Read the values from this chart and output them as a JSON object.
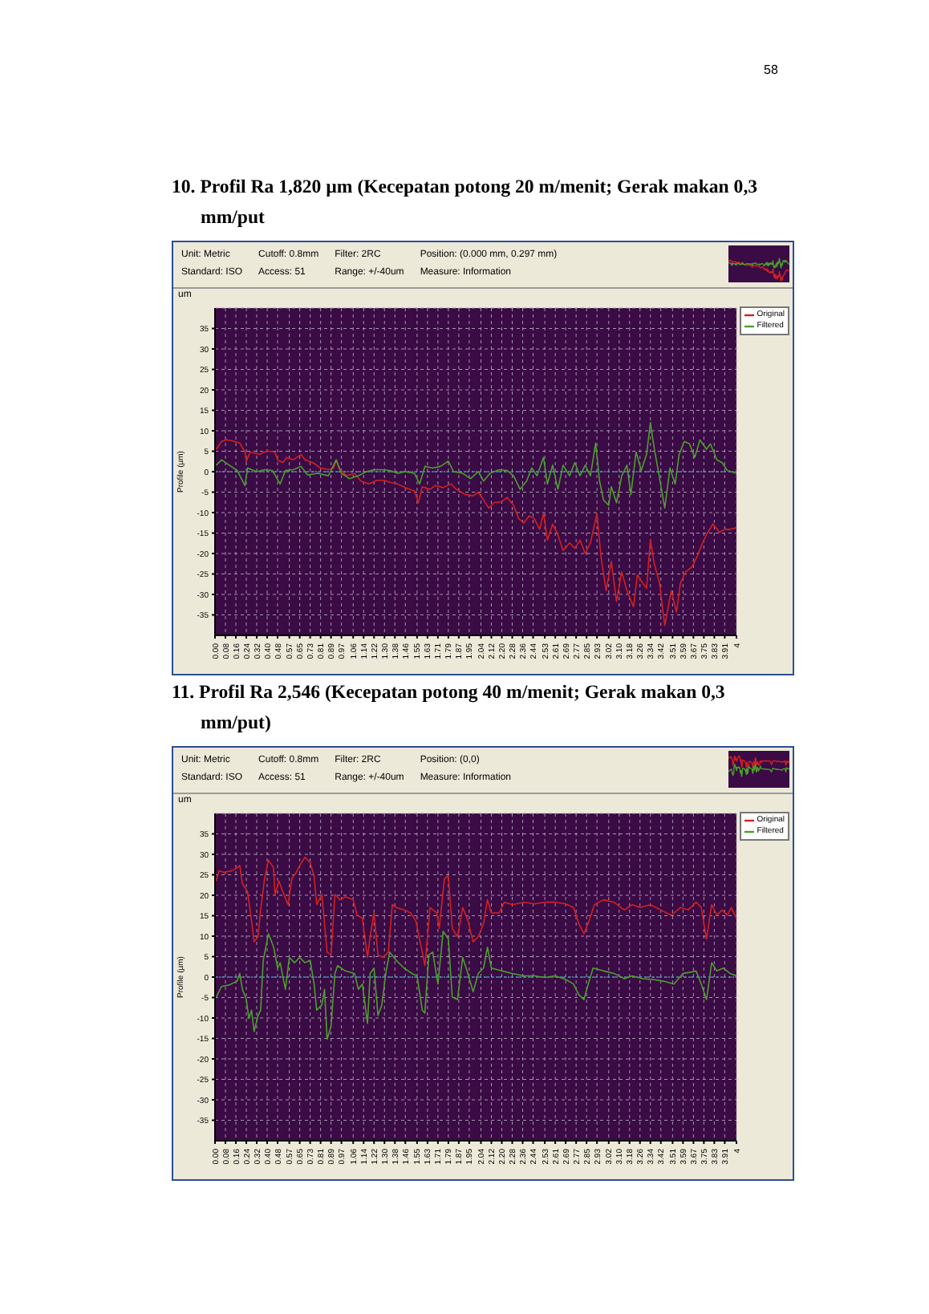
{
  "chart_data": [
    {
      "type": "line",
      "title": "10. Profil Ra 1,820 µm (Kecepatan potong 20 m/menit; Gerak makan 0,3 mm/put",
      "ylabel": "Profile (µm)",
      "annotations": [
        "Unit: Metric",
        "Cutoff: 0.8mm",
        "Filter: 2RC",
        "Position: (0.000 mm, 0.297 mm)",
        "Standard: ISO",
        "Access: 51",
        "Range: +/-40um",
        "Measure: Information",
        "um",
        "58"
      ],
      "series": [
        {
          "name": "Original",
          "color": "#d42020",
          "x": [
            0.01,
            0.05,
            0.09,
            0.15,
            0.19,
            0.23,
            0.24,
            0.27,
            0.34,
            0.4,
            0.46,
            0.48,
            0.52,
            0.55,
            0.6,
            0.66,
            0.69,
            0.75,
            0.81,
            0.87,
            0.91,
            0.93,
            0.95,
            1.01,
            1.07,
            1.12,
            1.18,
            1.24,
            1.3,
            1.34,
            1.4,
            1.46,
            1.53,
            1.56,
            1.59,
            1.65,
            1.69,
            1.75,
            1.81,
            1.85,
            1.92,
            1.98,
            2.02,
            2.06,
            2.1,
            2.14,
            2.2,
            2.24,
            2.29,
            2.33,
            2.37,
            2.41,
            2.45,
            2.49,
            2.52,
            2.55,
            2.59,
            2.63,
            2.67,
            2.72,
            2.76,
            2.8,
            2.84,
            2.88,
            2.93,
            2.96,
            3.0,
            3.04,
            3.08,
            3.12,
            3.16,
            3.21,
            3.24,
            3.28,
            3.31,
            3.34,
            3.37,
            3.41,
            3.45,
            3.5,
            3.54,
            3.57,
            3.61,
            3.66,
            3.7,
            3.74,
            3.78,
            3.82,
            3.87,
            3.91,
            3.95,
            4.0
          ],
          "values": [
            5.5,
            7.4,
            7.8,
            7.4,
            7.0,
            4.8,
            2.5,
            4.8,
            4.2,
            5.1,
            4.8,
            2.9,
            2.2,
            3.5,
            2.9,
            4.2,
            2.9,
            2.2,
            0.9,
            0.5,
            0.9,
            2.9,
            0.9,
            -1.0,
            -0.4,
            -2.3,
            -3.0,
            -2.1,
            -2.1,
            -2.6,
            -3.0,
            -3.9,
            -4.7,
            -7.6,
            -3.7,
            -4.3,
            -3.4,
            -3.9,
            -3.0,
            -4.3,
            -5.6,
            -5.9,
            -5.0,
            -6.9,
            -8.9,
            -7.6,
            -7.3,
            -6.3,
            -8.2,
            -11.5,
            -12.5,
            -10.8,
            -11.5,
            -14.1,
            -10.2,
            -16.7,
            -12.8,
            -15.4,
            -19.3,
            -17.4,
            -18.7,
            -16.7,
            -20.0,
            -17.4,
            -10.2,
            -20.6,
            -29.1,
            -21.9,
            -31.7,
            -24.5,
            -29.1,
            -33.0,
            -25.2,
            -27.2,
            -28.5,
            -16.7,
            -22.6,
            -27.2,
            -37.6,
            -29.1,
            -34.3,
            -27.2,
            -24.5,
            -23.2,
            -20.6,
            -17.4,
            -14.8,
            -12.8,
            -14.8,
            -14.1,
            -14.1,
            -13.7
          ]
        },
        {
          "name": "Filtered",
          "color": "#4aa02c",
          "x": [
            0.01,
            0.05,
            0.11,
            0.17,
            0.23,
            0.25,
            0.32,
            0.38,
            0.44,
            0.5,
            0.54,
            0.6,
            0.66,
            0.71,
            0.79,
            0.87,
            0.93,
            0.97,
            1.03,
            1.1,
            1.16,
            1.22,
            1.28,
            1.34,
            1.4,
            1.46,
            1.53,
            1.57,
            1.61,
            1.67,
            1.73,
            1.79,
            1.83,
            1.9,
            1.96,
            2.02,
            2.06,
            2.11,
            2.18,
            2.24,
            2.29,
            2.34,
            2.39,
            2.43,
            2.47,
            2.52,
            2.55,
            2.59,
            2.63,
            2.67,
            2.72,
            2.76,
            2.8,
            2.84,
            2.88,
            2.92,
            2.95,
            2.98,
            3.02,
            3.04,
            3.08,
            3.12,
            3.16,
            3.19,
            3.23,
            3.27,
            3.31,
            3.34,
            3.37,
            3.4,
            3.45,
            3.49,
            3.53,
            3.56,
            3.6,
            3.64,
            3.68,
            3.72,
            3.77,
            3.8,
            3.85,
            3.89,
            3.93,
            4.0
          ],
          "values": [
            1.6,
            2.9,
            1.6,
            0.3,
            -3.4,
            0.9,
            0,
            0.5,
            0.3,
            -3.0,
            0.3,
            0.5,
            1.3,
            -0.8,
            -0.4,
            -1.0,
            2.9,
            -0.4,
            -1.7,
            -1.0,
            0,
            0.5,
            0.5,
            0.3,
            -0.4,
            0,
            -0.4,
            -3.0,
            1.3,
            0.9,
            1.3,
            2.6,
            0,
            -0.4,
            -1.7,
            0,
            -2.3,
            -0.4,
            0.5,
            0.3,
            -1.0,
            -4.3,
            -2.3,
            0.9,
            -1.0,
            3.5,
            -3.0,
            1.6,
            -4.3,
            1.6,
            -1.0,
            2.2,
            -1.0,
            1.6,
            -1.0,
            7.0,
            -2.3,
            -6.9,
            -8.2,
            -3.7,
            -7.6,
            -1.0,
            1.6,
            -5.6,
            4.8,
            0.3,
            4.2,
            12.0,
            5.5,
            0.3,
            -8.9,
            0.9,
            -3.0,
            4.2,
            7.4,
            6.8,
            3.5,
            7.8,
            5.5,
            6.8,
            2.9,
            2.2,
            0.3,
            -0.4
          ]
        }
      ],
      "xlim": [
        0,
        4
      ],
      "xticks": [
        {
          "value": 0,
          "label": "0.00"
        },
        0.08,
        0.16,
        0.24,
        0.32,
        {
          "value": 0.4,
          "label": "0.40"
        },
        0.48,
        0.57,
        0.65,
        0.73,
        0.81,
        0.89,
        0.97,
        1.06,
        1.14,
        1.22,
        {
          "value": 1.3,
          "label": "1.30"
        },
        1.38,
        1.46,
        1.55,
        1.63,
        1.71,
        1.79,
        1.87,
        1.95,
        2.04,
        2.12,
        {
          "value": 2.2,
          "label": "2.20"
        },
        2.28,
        2.36,
        2.44,
        2.53,
        2.61,
        2.69,
        2.77,
        2.85,
        2.93,
        3.02,
        {
          "value": 3.1,
          "label": "3.10"
        },
        3.18,
        3.26,
        3.34,
        3.42,
        3.51,
        3.59,
        3.67,
        3.75,
        3.83,
        3.91,
        4
      ],
      "ylim": [
        -40,
        40
      ],
      "yticks": [
        -35,
        -30,
        -25,
        -20,
        -15,
        -10,
        -5,
        0,
        5,
        10,
        15,
        20,
        25,
        30,
        35
      ],
      "grid": true,
      "legend": "top right",
      "ref_lines": [
        {
          "axis": "y",
          "value": 0,
          "color": "#2fa0c8",
          "line_style": "dotted"
        }
      ]
    },
    {
      "type": "line",
      "title": "11. Profil Ra 2,546 (Kecepatan potong 40 m/menit; Gerak makan 0,3 mm/put)",
      "ylabel": "Profile (µm)",
      "annotations": [
        "Unit: Metric",
        "Cutoff: 0.8mm",
        "Filter: 2RC",
        "Position: (0,0)",
        "Standard: ISO",
        "Access: 51",
        "Range: +/-40um",
        "Measure: Information",
        "um"
      ],
      "series": [
        {
          "name": "Original",
          "color": "#d42020",
          "x": [
            0.01,
            0.03,
            0.07,
            0.13,
            0.17,
            0.19,
            0.21,
            0.25,
            0.28,
            0.3,
            0.33,
            0.35,
            0.38,
            0.41,
            0.45,
            0.46,
            0.49,
            0.52,
            0.56,
            0.59,
            0.62,
            0.65,
            0.69,
            0.73,
            0.76,
            0.78,
            0.82,
            0.86,
            0.89,
            0.92,
            0.96,
            1.0,
            1.06,
            1.09,
            1.13,
            1.17,
            1.19,
            1.22,
            1.25,
            1.29,
            1.33,
            1.36,
            1.39,
            1.45,
            1.5,
            1.54,
            1.59,
            1.61,
            1.65,
            1.7,
            1.72,
            1.76,
            1.79,
            1.82,
            1.86,
            1.9,
            1.94,
            1.98,
            2.02,
            2.06,
            2.09,
            2.12,
            2.18,
            2.22,
            2.28,
            2.37,
            2.45,
            2.53,
            2.61,
            2.69,
            2.75,
            2.79,
            2.83,
            2.87,
            2.91,
            2.98,
            3.06,
            3.14,
            3.2,
            3.26,
            3.34,
            3.42,
            3.5,
            3.57,
            3.63,
            3.69,
            3.73,
            3.77,
            3.81,
            3.85,
            3.89,
            3.93,
            3.96,
            4.0
          ],
          "values": [
            23.5,
            26.0,
            25.6,
            26.0,
            26.7,
            27.3,
            22.8,
            20.9,
            13.8,
            8.6,
            9.9,
            16.4,
            24.1,
            28.6,
            26.7,
            20.2,
            23.5,
            20.9,
            17.7,
            24.1,
            25.4,
            27.3,
            29.3,
            28.0,
            24.7,
            17.7,
            20.2,
            6.1,
            5.4,
            20.2,
            18.9,
            19.6,
            18.9,
            15.1,
            14.4,
            4.8,
            9.9,
            15.7,
            5.4,
            4.8,
            6.1,
            17.7,
            17.0,
            16.4,
            15.7,
            13.8,
            6.1,
            2.8,
            17.0,
            15.7,
            11.9,
            24.1,
            24.7,
            11.9,
            9.9,
            17.0,
            13.8,
            8.6,
            9.9,
            13.1,
            18.9,
            15.7,
            15.7,
            18.3,
            17.7,
            18.3,
            17.9,
            18.3,
            18.3,
            17.9,
            17.0,
            13.1,
            10.6,
            13.8,
            17.7,
            18.9,
            18.3,
            16.4,
            17.7,
            17.0,
            17.7,
            16.4,
            15.1,
            17.0,
            16.4,
            18.3,
            17.0,
            9.3,
            17.7,
            15.1,
            16.4,
            15.1,
            17.0,
            14.4
          ]
        },
        {
          "name": "Filtered",
          "color": "#4aa02c",
          "x": [
            0.01,
            0.05,
            0.11,
            0.17,
            0.19,
            0.21,
            0.24,
            0.26,
            0.28,
            0.3,
            0.33,
            0.35,
            0.37,
            0.39,
            0.41,
            0.45,
            0.48,
            0.5,
            0.54,
            0.57,
            0.61,
            0.65,
            0.69,
            0.73,
            0.76,
            0.78,
            0.82,
            0.84,
            0.86,
            0.89,
            0.92,
            0.94,
            1.0,
            1.07,
            1.1,
            1.13,
            1.17,
            1.19,
            1.22,
            1.25,
            1.28,
            1.31,
            1.34,
            1.39,
            1.45,
            1.51,
            1.55,
            1.59,
            1.61,
            1.64,
            1.67,
            1.71,
            1.75,
            1.79,
            1.82,
            1.86,
            1.9,
            1.94,
            1.98,
            2.02,
            2.06,
            2.09,
            2.12,
            2.2,
            2.28,
            2.37,
            2.45,
            2.53,
            2.61,
            2.69,
            2.75,
            2.79,
            2.83,
            2.87,
            2.9,
            2.98,
            3.06,
            3.14,
            3.2,
            3.28,
            3.36,
            3.44,
            3.52,
            3.59,
            3.65,
            3.69,
            3.73,
            3.77,
            3.81,
            3.85,
            3.9,
            3.95,
            4.0
          ],
          "values": [
            -4.9,
            -2.3,
            -1.9,
            -1.0,
            0.9,
            -3.0,
            -5.5,
            -10.1,
            -8.1,
            -13.3,
            -9.4,
            -8.1,
            4.1,
            7.3,
            10.6,
            7.3,
            2.2,
            3.5,
            -3.0,
            4.8,
            3.5,
            4.8,
            3.5,
            4.1,
            -1.7,
            -8.1,
            -6.8,
            -3.0,
            -15.2,
            -12.0,
            0.9,
            2.8,
            1.5,
            0.9,
            -3.0,
            -1.7,
            -11.3,
            0.9,
            2.2,
            -9.4,
            -6.8,
            0.9,
            6.1,
            4.1,
            2.2,
            0.9,
            0.3,
            -8.1,
            -8.8,
            5.4,
            6.1,
            -1.7,
            11.2,
            9.3,
            -4.9,
            -5.5,
            4.8,
            0.9,
            -3.6,
            0.9,
            2.2,
            7.3,
            2.2,
            1.5,
            0.9,
            0.3,
            0.3,
            -0.1,
            0.3,
            -0.6,
            -1.7,
            -4.3,
            -5.5,
            -1.0,
            2.2,
            1.5,
            0.9,
            -0.4,
            0.3,
            -0.4,
            -0.6,
            -1.0,
            -1.7,
            0.9,
            1.2,
            1.5,
            -1.7,
            -5.5,
            3.5,
            1.5,
            2.2,
            0.9,
            0.3
          ]
        }
      ],
      "xlim": [
        0,
        4
      ],
      "xticks": [
        {
          "value": 0,
          "label": "0.00"
        },
        0.08,
        0.16,
        0.24,
        0.32,
        {
          "value": 0.4,
          "label": "0.40"
        },
        0.48,
        0.57,
        0.65,
        0.73,
        0.81,
        0.89,
        0.97,
        1.06,
        1.14,
        1.22,
        {
          "value": 1.3,
          "label": "1.30"
        },
        1.38,
        1.46,
        1.55,
        1.63,
        1.71,
        1.79,
        1.87,
        1.95,
        2.04,
        2.12,
        {
          "value": 2.2,
          "label": "2.20"
        },
        2.28,
        2.36,
        2.44,
        2.53,
        2.61,
        2.69,
        2.77,
        2.85,
        2.93,
        3.02,
        {
          "value": 3.1,
          "label": "3.10"
        },
        3.18,
        3.26,
        3.34,
        3.42,
        3.51,
        3.59,
        3.67,
        3.75,
        3.83,
        3.91,
        4
      ],
      "ylim": [
        -40,
        40
      ],
      "yticks": [
        -35,
        -30,
        -25,
        -20,
        -15,
        -10,
        -5,
        0,
        5,
        10,
        15,
        20,
        25,
        30,
        35
      ],
      "grid": true,
      "legend": "top right",
      "ref_lines": [
        {
          "axis": "y",
          "value": 0,
          "color": "#2fa0c8",
          "line_style": "dotted"
        }
      ]
    }
  ]
}
